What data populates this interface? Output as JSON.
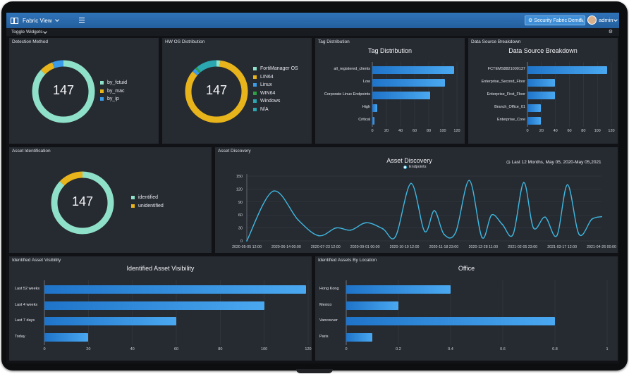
{
  "topbar": {
    "view": "Fabric View",
    "fabric_button": "Security Fabric Demo",
    "user": "admin"
  },
  "subbar": {
    "toggle_widgets": "Toggle Widgets"
  },
  "colors": {
    "teal": "#8fe0c8",
    "yellow": "#e8b41c",
    "blue": "#3a9be8",
    "green": "#2ea043",
    "cyan": "#2aa7b0",
    "bar": "#3a9be8"
  },
  "detection": {
    "title": "Detection Method",
    "total": "147",
    "legend": [
      {
        "label": "by_fctuid",
        "color": "#8fe0c8",
        "value": 0.87
      },
      {
        "label": "by_mac",
        "color": "#e8b41c",
        "value": 0.07
      },
      {
        "label": "by_ip",
        "color": "#3a9be8",
        "value": 0.06
      }
    ]
  },
  "hwos": {
    "title": "HW OS Distribution",
    "total": "147",
    "legend": [
      {
        "label": "FortiManager OS",
        "color": "#8fe0c8",
        "value": 0.02
      },
      {
        "label": "LIN64",
        "color": "#e8b41c",
        "value": 0.84
      },
      {
        "label": "Linux",
        "color": "#3a9be8",
        "value": 0.02
      },
      {
        "label": "WIN64",
        "color": "#2ea043",
        "value": 0.01
      },
      {
        "label": "Windows",
        "color": "#2aa7b0",
        "value": 0.11
      },
      {
        "label": "N/A",
        "color": "#2aa7b0",
        "value": 0.0
      }
    ]
  },
  "tagdist": {
    "title": "Tag Distribution",
    "chart_title": "Tag Distribution",
    "categories": [
      "all_registered_clients",
      "Low",
      "Corporate Linux Endpoints",
      "High",
      "Critical"
    ],
    "values": [
      116,
      103,
      82,
      7,
      3
    ],
    "ticks": [
      "0",
      "20",
      "40",
      "60",
      "80",
      "100",
      "120"
    ],
    "max": 120
  },
  "datasource": {
    "title": "Data Source Breakdown",
    "chart_title": "Data Source Breakdown",
    "categories": [
      "FCTEMS8821000137",
      "Enterprise_Second_Floor",
      "Enterprise_First_Floor",
      "Branch_Office_01",
      "Enterprise_Core"
    ],
    "values": [
      114,
      39,
      39,
      19,
      19
    ],
    "ticks": [
      "0",
      "20",
      "40",
      "60",
      "80",
      "100",
      "120"
    ],
    "max": 120
  },
  "assetid": {
    "title": "Asset Identification",
    "total": "147",
    "legend": [
      {
        "label": "identified",
        "color": "#8fe0c8",
        "value": 0.87
      },
      {
        "label": "unidentified",
        "color": "#e8b41c",
        "value": 0.13
      }
    ]
  },
  "discovery": {
    "title": "Asset Discovery",
    "chart_title": "Asset Discovery",
    "legend_label": "Endpoints",
    "range_label": "Last 12 Months, May 05, 2020-May 05,2021",
    "yticks": [
      "0",
      "30",
      "60",
      "90",
      "120",
      "150"
    ],
    "xticks": [
      "2020-05-05 12:00",
      "2020-06-14 00:00",
      "2020-07-23 12:00",
      "2020-09-01 00:00",
      "2020-10-10 12:00",
      "2020-11-18 23:00",
      "2020-12-28 11:00",
      "2021-02-05 23:00",
      "2021-03-17 12:00",
      "2021-04-26 00:00"
    ],
    "chart_data": {
      "type": "line",
      "ylim": [
        0,
        150
      ],
      "series": [
        {
          "name": "Endpoints",
          "x": [
            "2020-05-05",
            "2020-06-01",
            "2020-06-27",
            "2020-07-18",
            "2020-08-05",
            "2020-08-20",
            "2020-09-05",
            "2020-09-22",
            "2020-10-05",
            "2020-10-21",
            "2020-11-04",
            "2020-11-14",
            "2020-11-24",
            "2020-12-06",
            "2020-12-20",
            "2021-01-02",
            "2021-01-12",
            "2021-01-23",
            "2021-02-03",
            "2021-02-14",
            "2021-02-24",
            "2021-03-08",
            "2021-03-20",
            "2021-03-31",
            "2021-04-12",
            "2021-04-25",
            "2021-05-05"
          ],
          "y": [
            0,
            115,
            48,
            12,
            30,
            25,
            42,
            28,
            10,
            133,
            22,
            70,
            15,
            20,
            140,
            8,
            60,
            38,
            15,
            135,
            30,
            55,
            12,
            130,
            15,
            50,
            56
          ]
        }
      ]
    }
  },
  "visibility": {
    "title": "Identified Asset Visibility",
    "chart_title": "Identified Asset Visibility",
    "categories": [
      "Last 52 weeks",
      "Last 4 weeks",
      "Last 7 days",
      "Today"
    ],
    "values": [
      119,
      100,
      60,
      20
    ],
    "ticks": [
      "0",
      "20",
      "40",
      "60",
      "80",
      "100",
      "120"
    ],
    "max": 120
  },
  "location": {
    "title": "Identified Assets By Location",
    "chart_title": "Office",
    "categories": [
      "Hong Kong",
      "Mexico",
      "Vancouver",
      "Paris"
    ],
    "values": [
      0.4,
      0.2,
      0.8,
      0.1
    ],
    "ticks": [
      "0",
      "0.2",
      "0.4",
      "0.6",
      "0.8",
      "1"
    ],
    "max": 1
  }
}
